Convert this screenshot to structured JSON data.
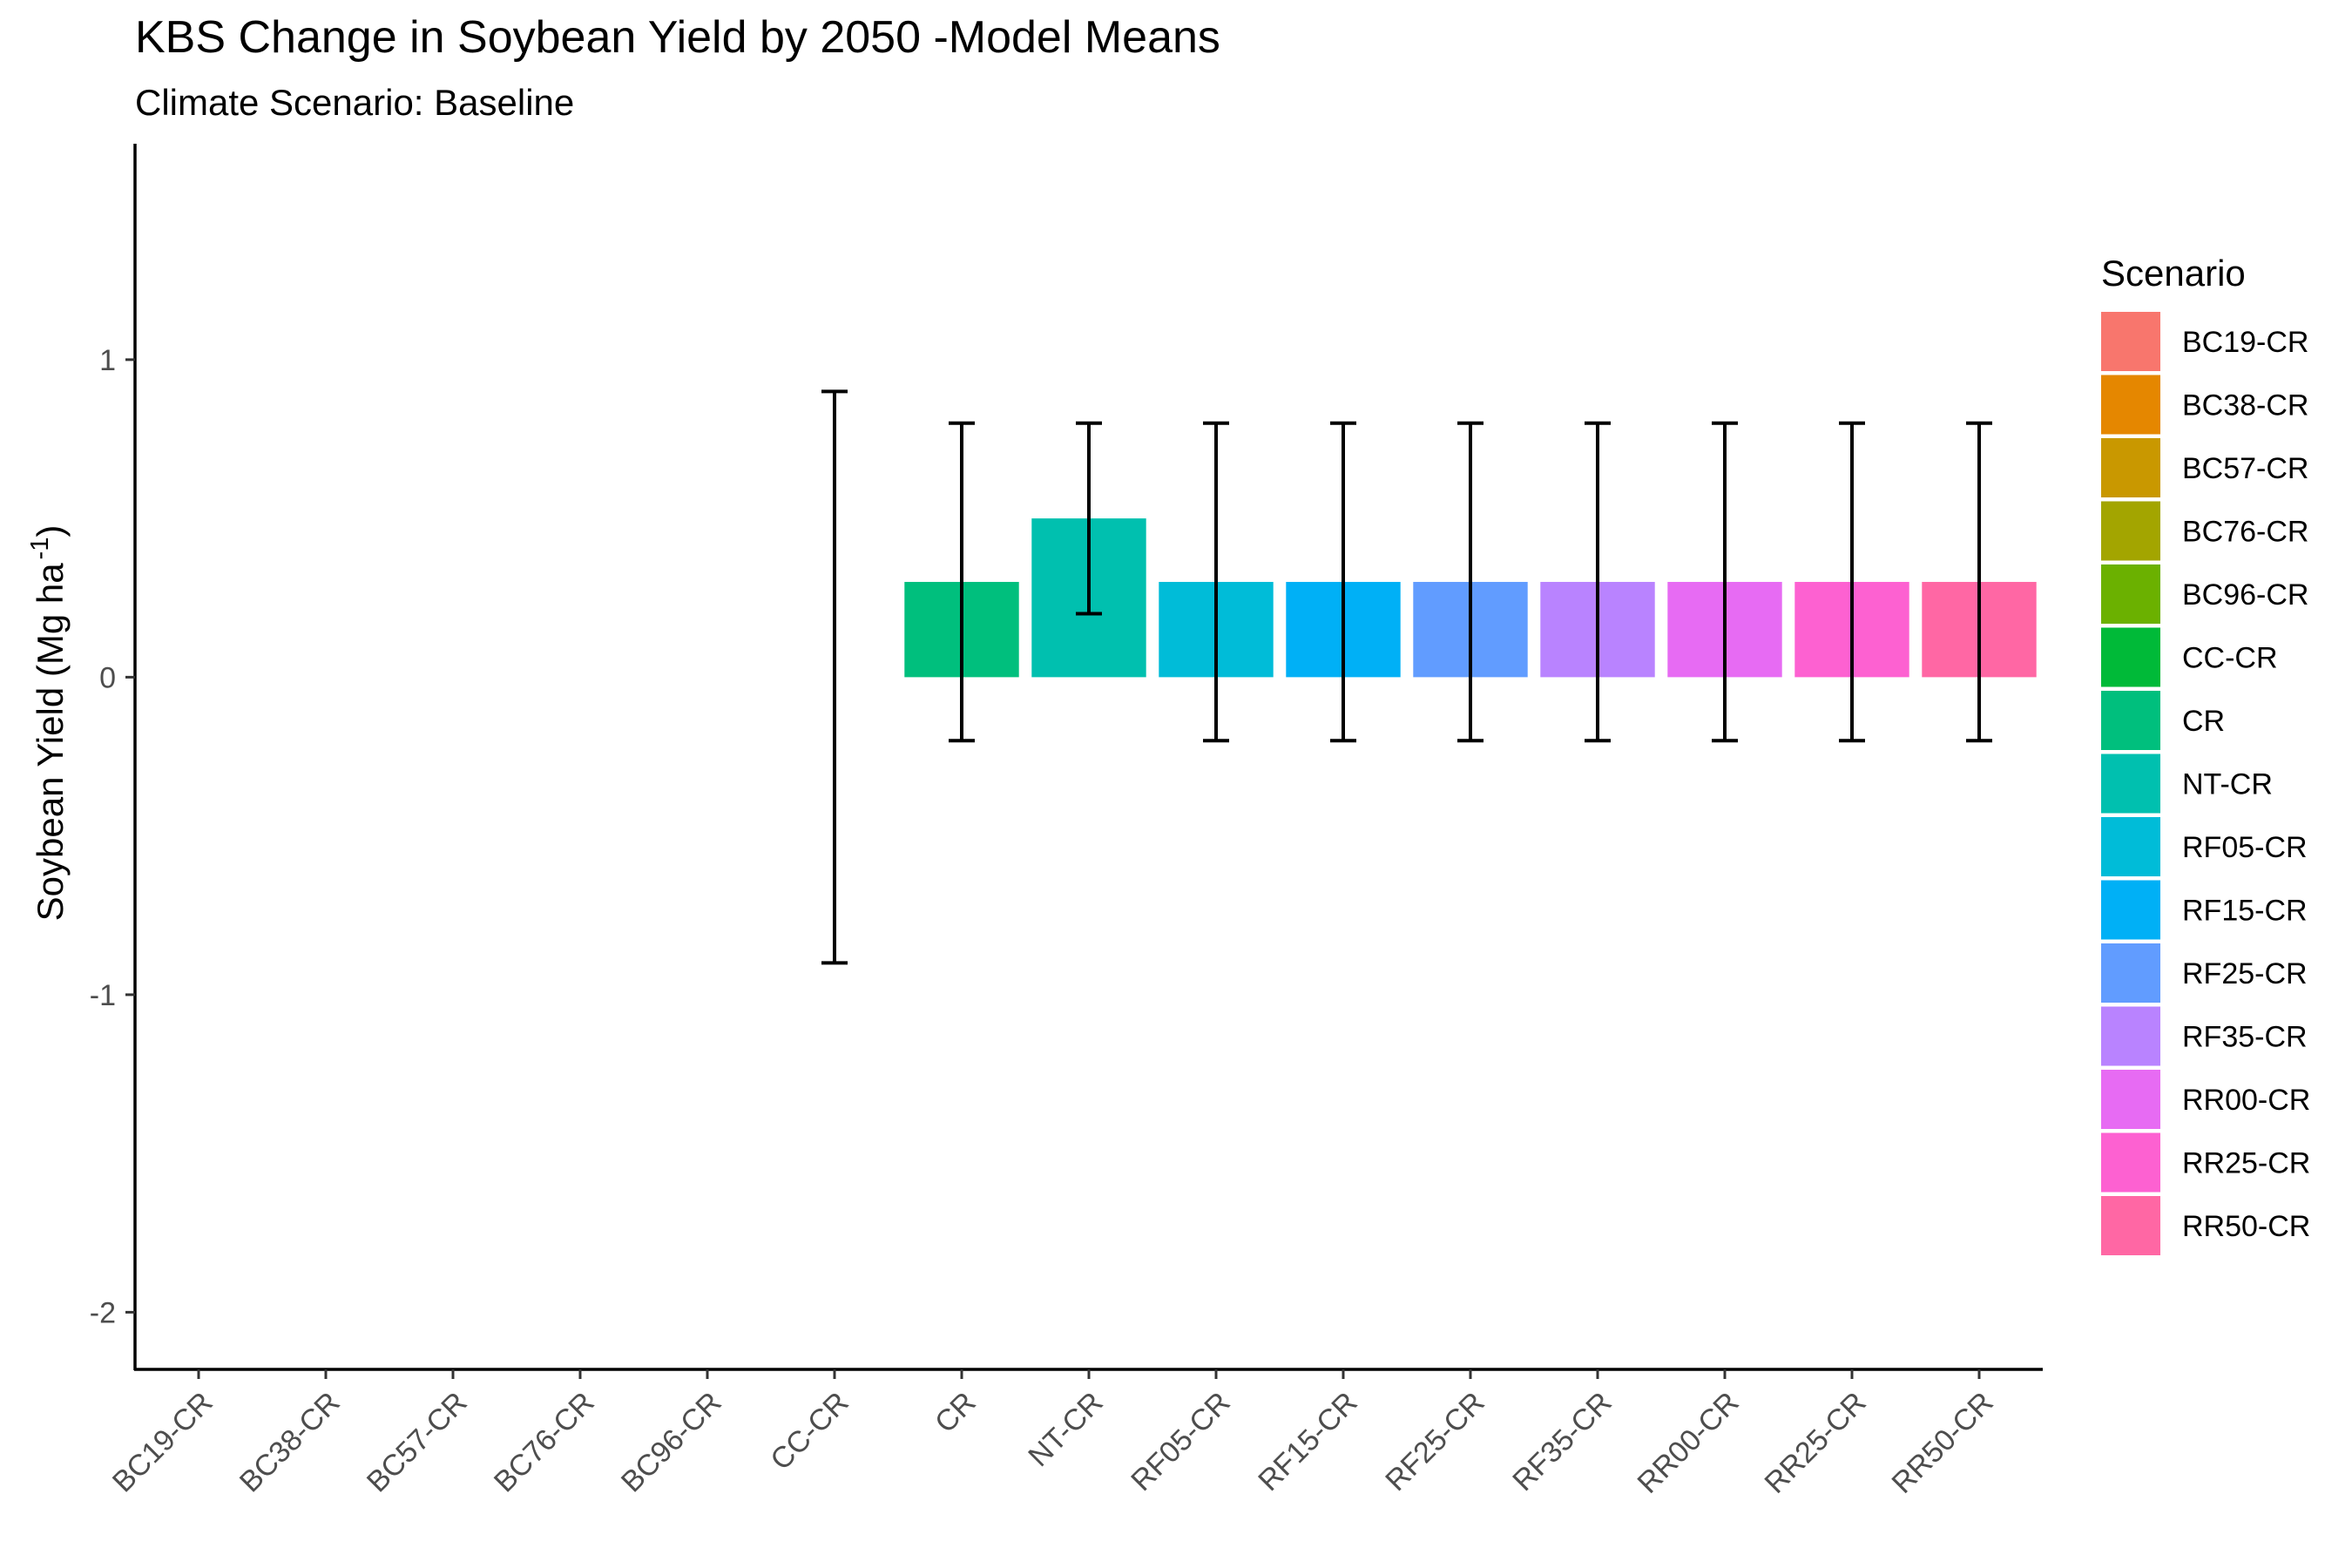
{
  "chart_data": {
    "type": "bar",
    "title": "KBS Change in Soybean Yield by  2050 -Model Means",
    "subtitle": "Climate Scenario: Baseline",
    "xlabel": "",
    "ylabel": {
      "main": "Soybean Yield (Mg ha",
      "superscript": "-1",
      "close": ")"
    },
    "ylim": [
      -2.18,
      1.68
    ],
    "yticks": [
      1,
      0,
      -1,
      -2
    ],
    "ytick_labels": [
      "1",
      "0",
      "-1",
      "-2"
    ],
    "categories": [
      "BC19-CR",
      "BC38-CR",
      "BC57-CR",
      "BC76-CR",
      "BC96-CR",
      "CC-CR",
      "CR",
      "NT-CR",
      "RF05-CR",
      "RF15-CR",
      "RF25-CR",
      "RF35-CR",
      "RR00-CR",
      "RR25-CR",
      "RR50-CR"
    ],
    "values": [
      null,
      null,
      null,
      null,
      null,
      0,
      0.3,
      0.5,
      0.3,
      0.3,
      0.3,
      0.3,
      0.3,
      0.3,
      0.3
    ],
    "error_low": [
      null,
      null,
      null,
      null,
      null,
      -0.9,
      -0.2,
      0.2,
      -0.2,
      -0.2,
      -0.2,
      -0.2,
      -0.2,
      -0.2,
      -0.2
    ],
    "error_high": [
      null,
      null,
      null,
      null,
      null,
      0.9,
      0.8,
      0.8,
      0.8,
      0.8,
      0.8,
      0.8,
      0.8,
      0.8,
      0.8
    ],
    "colors": [
      "#F8766D",
      "#E58700",
      "#C99800",
      "#A3A500",
      "#6BB100",
      "#00BA38",
      "#00BF7D",
      "#00C0AF",
      "#00BCD8",
      "#00B0F6",
      "#619CFF",
      "#B983FF",
      "#E76BF3",
      "#FD61D1",
      "#FF67A4"
    ],
    "legend": {
      "title": "Scenario",
      "position": "right",
      "entries": [
        "BC19-CR",
        "BC38-CR",
        "BC57-CR",
        "BC76-CR",
        "BC96-CR",
        "CC-CR",
        "CR",
        "NT-CR",
        "RF05-CR",
        "RF15-CR",
        "RF25-CR",
        "RF35-CR",
        "RR00-CR",
        "RR25-CR",
        "RR50-CR"
      ]
    },
    "grid": false
  }
}
